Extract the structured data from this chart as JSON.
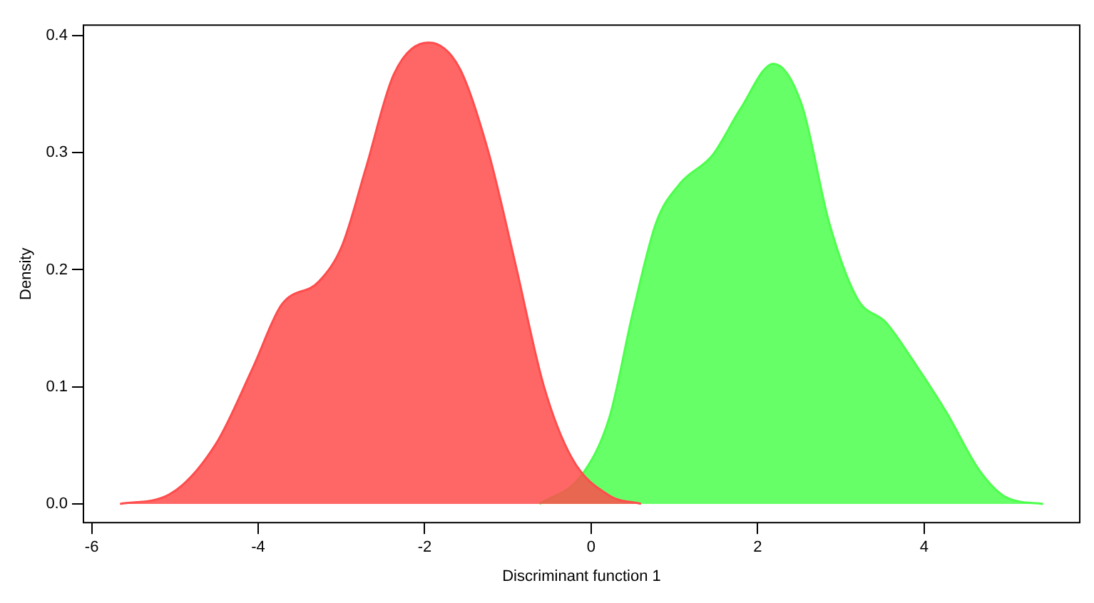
{
  "chart_data": {
    "type": "area",
    "xlabel": "Discriminant function 1",
    "ylabel": "Density",
    "xlim": [
      -6.1,
      5.87
    ],
    "ylim": [
      -0.016,
      0.409
    ],
    "xticks": [
      -6,
      -4,
      -2,
      0,
      2,
      4
    ],
    "yticks": [
      {
        "value": 0,
        "label": "0.0"
      },
      {
        "value": 0.1,
        "label": "0.1"
      },
      {
        "value": 0.2,
        "label": "0.2"
      },
      {
        "value": 0.3,
        "label": "0.3"
      },
      {
        "value": 0.4,
        "label": "0.4"
      }
    ],
    "grid": false,
    "legend": false,
    "series": [
      {
        "color": "#ff4c4c",
        "x": [
          -5.66,
          -5.07,
          -4.51,
          -4.06,
          -3.72,
          -3.27,
          -2.99,
          -2.71,
          -2.37,
          -1.95,
          -1.58,
          -1.24,
          -0.91,
          -0.57,
          -0.23,
          0.22,
          0.6
        ],
        "values": [
          0,
          0.008,
          0.051,
          0.117,
          0.17,
          0.19,
          0.221,
          0.286,
          0.367,
          0.394,
          0.372,
          0.302,
          0.205,
          0.101,
          0.039,
          0.007,
          0
        ]
      },
      {
        "color": "#4cff4c",
        "x": [
          -0.62,
          -0.12,
          0.22,
          0.5,
          0.78,
          1.06,
          1.46,
          1.79,
          2.19,
          2.53,
          2.86,
          3.2,
          3.54,
          3.88,
          4.27,
          4.67,
          5.0,
          5.43
        ],
        "values": [
          0,
          0.024,
          0.074,
          0.163,
          0.24,
          0.273,
          0.298,
          0.337,
          0.376,
          0.341,
          0.24,
          0.175,
          0.155,
          0.121,
          0.078,
          0.028,
          0.005,
          0
        ]
      }
    ]
  }
}
